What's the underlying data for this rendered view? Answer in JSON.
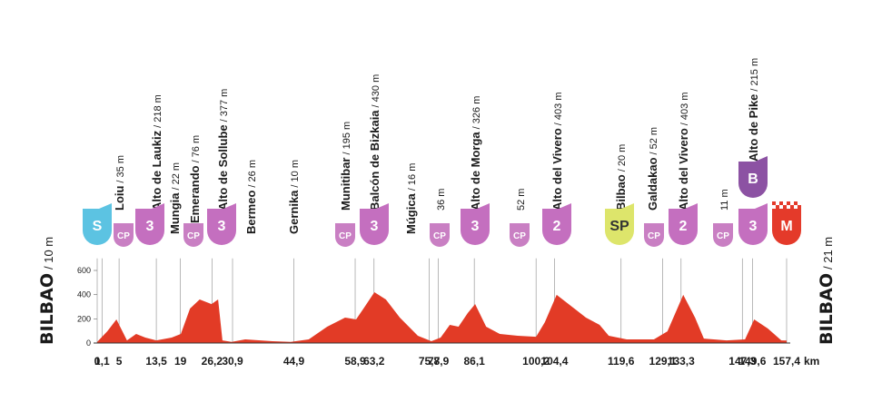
{
  "chart_data": {
    "type": "profile",
    "start": {
      "name": "BILBAO",
      "elevation": "/ 10 m"
    },
    "finish": {
      "name": "BILBAO",
      "elevation": "/ 21 m"
    },
    "x": [
      0,
      2.3,
      4.4,
      6.8,
      8.9,
      11.0,
      13.5,
      17.0,
      19.1,
      21.2,
      23.4,
      26.1,
      27.6,
      28.6,
      30.7,
      33.8,
      40.0,
      44.2,
      48.3,
      52.5,
      56.6,
      59.1,
      60.8,
      63.3,
      65.9,
      69.1,
      73.2,
      76.3,
      78.4,
      80.5,
      82.5,
      84.6,
      86.3,
      88.8,
      91.9,
      96.0,
      100.2,
      102.2,
      104.9,
      108.4,
      111.6,
      114.7,
      116.8,
      120.9,
      127.1,
      130.2,
      133.8,
      136.5,
      138.5,
      143.7,
      147.9,
      150.0,
      153.1,
      156.2,
      157.4
    ],
    "values": [
      10,
      97,
      195,
      22,
      75,
      45,
      22,
      45,
      75,
      285,
      360,
      322,
      360,
      22,
      10,
      30,
      15,
      10,
      30,
      135,
      210,
      195,
      285,
      420,
      360,
      210,
      60,
      15,
      45,
      150,
      135,
      248,
      322,
      135,
      75,
      60,
      52,
      172,
      398,
      300,
      210,
      150,
      60,
      30,
      30,
      97,
      398,
      210,
      37,
      22,
      30,
      195,
      120,
      22,
      21
    ],
    "color": "#e23b26",
    "xlim": [
      0,
      157.4
    ],
    "ylim": [
      0,
      700
    ],
    "yticks": [
      0,
      200,
      400,
      600
    ],
    "xticks": [
      {
        "value": 0,
        "label": "0"
      },
      {
        "value": 1.1,
        "label": "1,1"
      },
      {
        "value": 5,
        "label": "5"
      },
      {
        "value": 13.5,
        "label": "13,5"
      },
      {
        "value": 19,
        "label": "19"
      },
      {
        "value": 26.2,
        "label": "26,2"
      },
      {
        "value": 30.9,
        "label": "30,9"
      },
      {
        "value": 44.9,
        "label": "44,9"
      },
      {
        "value": 58.9,
        "label": "58,9"
      },
      {
        "value": 63.2,
        "label": "63,2"
      },
      {
        "value": 75.8,
        "label": "75,8"
      },
      {
        "value": 77.9,
        "label": "77,9"
      },
      {
        "value": 86.1,
        "label": "86,1"
      },
      {
        "value": 100.2,
        "label": "100,2"
      },
      {
        "value": 104.4,
        "label": "104,4"
      },
      {
        "value": 119.6,
        "label": "119,6"
      },
      {
        "value": 129.1,
        "label": "129,1"
      },
      {
        "value": 133.3,
        "label": "133,3"
      },
      {
        "value": 147.3,
        "label": "147,3"
      },
      {
        "value": 149.6,
        "label": "149,6"
      },
      {
        "value": 157.4,
        "label": "157,4"
      }
    ],
    "x_unit": "km",
    "waypoints": [
      {
        "name": "Loiu",
        "elevation": "/ 35 m"
      },
      {
        "name": "Alto de Laukiz",
        "elevation": "/ 218 m"
      },
      {
        "name": "Mungia",
        "elevation": "/ 22 m"
      },
      {
        "name": "Emerando",
        "elevation": "/ 76 m"
      },
      {
        "name": "Alto de Sollube",
        "elevation": "/ 377 m"
      },
      {
        "name": "Bermeo",
        "elevation": "/ 26 m"
      },
      {
        "name": "Gernika",
        "elevation": "/ 10 m"
      },
      {
        "name": "Munitibar",
        "elevation": "/ 195 m"
      },
      {
        "name": "Balcón de Bizkaia",
        "elevation": "/ 430 m"
      },
      {
        "name": "Múgica",
        "elevation": "/ 16 m"
      },
      {
        "elevation": "36 m"
      },
      {
        "name": "Alto de Morga",
        "elevation": "/ 326 m"
      },
      {
        "elevation": "52 m"
      },
      {
        "name": "Alto del Vivero",
        "elevation": "/ 403 m"
      },
      {
        "name": "Bilbao",
        "elevation": "/ 20 m"
      },
      {
        "name": "Galdakao",
        "elevation": "/ 52 m"
      },
      {
        "name": "Alto del Vivero",
        "elevation": "/ 403 m"
      },
      {
        "elevation": "11 m"
      },
      {
        "name": "Alto de Pike",
        "elevation": "/ 215 m"
      }
    ],
    "badges": [
      {
        "label": "S",
        "color": "#5cc3e2"
      },
      {
        "label": "CP",
        "color": "#c97fc3"
      },
      {
        "label": "3",
        "color": "#c46fbf"
      },
      {
        "label": "CP",
        "color": "#c97fc3"
      },
      {
        "label": "3",
        "color": "#c46fbf"
      },
      {
        "label": "CP",
        "color": "#c97fc3"
      },
      {
        "label": "3",
        "color": "#c46fbf"
      },
      {
        "label": "CP",
        "color": "#c97fc3"
      },
      {
        "label": "3",
        "color": "#c46fbf"
      },
      {
        "label": "CP",
        "color": "#c97fc3"
      },
      {
        "label": "2",
        "color": "#c46fbf"
      },
      {
        "label": "SP",
        "color": "#dde56b"
      },
      {
        "label": "CP",
        "color": "#c97fc3"
      },
      {
        "label": "2",
        "color": "#c46fbf"
      },
      {
        "label": "CP",
        "color": "#c97fc3"
      },
      {
        "label": "3",
        "color": "#c46fbf"
      },
      {
        "label": "B",
        "color": "#8c52a3"
      },
      {
        "label": "M",
        "color": "#e43a2a"
      }
    ]
  }
}
